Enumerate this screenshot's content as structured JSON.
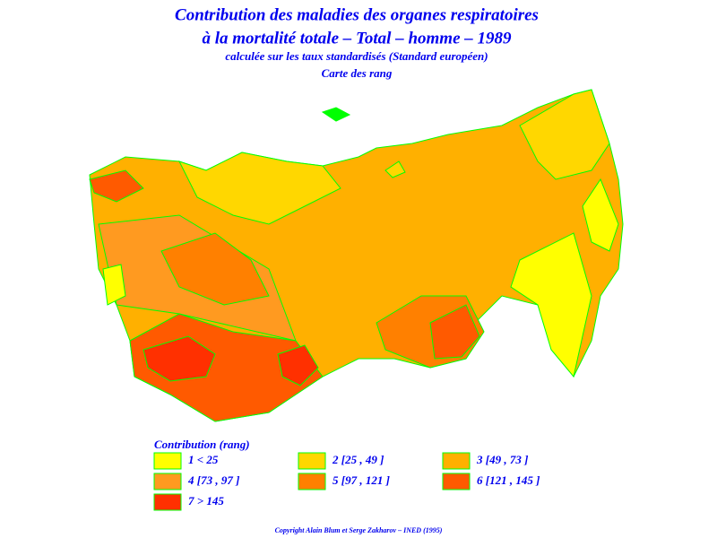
{
  "header": {
    "title_line1": "Contribution des maladies des organes respiratoires",
    "title_line2": "à la mortalité totale  –  Total  –  homme  –  1989",
    "subtitle": "calculée sur les taux standardisés (Standard européen)",
    "map_kind": "Carte des rang"
  },
  "legend": {
    "title": "Contribution  (rang)",
    "items": [
      {
        "label": "1  <  25",
        "color": "#ffff00"
      },
      {
        "label": "2 [25 , 49 ]",
        "color": "#ffd700"
      },
      {
        "label": "3 [49 , 73 ]",
        "color": "#ffb000"
      },
      {
        "label": "4 [73 , 97 ]",
        "color": "#ff9a20"
      },
      {
        "label": "5 [97 , 121 ]",
        "color": "#ff8000"
      },
      {
        "label": "6 [121 , 145 ]",
        "color": "#ff5a00"
      },
      {
        "label": "7  >  145",
        "color": "#ff3000"
      }
    ]
  },
  "footer": {
    "copyright": "Copyright Alain Blum et Serge Zakharov  –  INED (1995)"
  }
}
